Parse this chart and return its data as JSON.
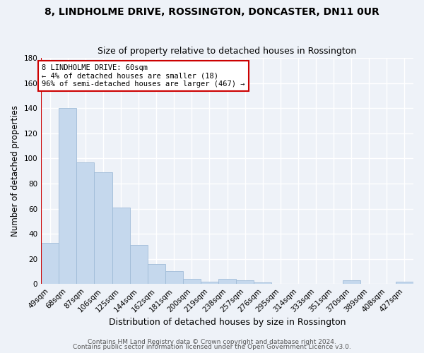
{
  "title": "8, LINDHOLME DRIVE, ROSSINGTON, DONCASTER, DN11 0UR",
  "subtitle": "Size of property relative to detached houses in Rossington",
  "xlabel": "Distribution of detached houses by size in Rossington",
  "ylabel": "Number of detached properties",
  "bar_labels": [
    "49sqm",
    "68sqm",
    "87sqm",
    "106sqm",
    "125sqm",
    "144sqm",
    "162sqm",
    "181sqm",
    "200sqm",
    "219sqm",
    "238sqm",
    "257sqm",
    "276sqm",
    "295sqm",
    "314sqm",
    "333sqm",
    "351sqm",
    "370sqm",
    "389sqm",
    "408sqm",
    "427sqm"
  ],
  "bar_values": [
    33,
    140,
    97,
    89,
    61,
    31,
    16,
    10,
    4,
    2,
    4,
    3,
    1,
    0,
    0,
    0,
    0,
    3,
    0,
    0,
    2
  ],
  "bar_color": "#c5d8ed",
  "bar_edge_color": "#a0bcd8",
  "ylim": [
    0,
    180
  ],
  "yticks": [
    0,
    20,
    40,
    60,
    80,
    100,
    120,
    140,
    160,
    180
  ],
  "vline_color": "#cc0000",
  "annotation_text": "8 LINDHOLME DRIVE: 60sqm\n← 4% of detached houses are smaller (18)\n96% of semi-detached houses are larger (467) →",
  "annotation_box_color": "#ffffff",
  "annotation_box_edge_color": "#cc0000",
  "footer_line1": "Contains HM Land Registry data © Crown copyright and database right 2024.",
  "footer_line2": "Contains public sector information licensed under the Open Government Licence v3.0.",
  "background_color": "#eef2f8",
  "grid_color": "#ffffff",
  "title_fontsize": 10,
  "subtitle_fontsize": 9,
  "tick_fontsize": 7.5,
  "xlabel_fontsize": 9,
  "ylabel_fontsize": 8.5,
  "footer_fontsize": 6.5
}
